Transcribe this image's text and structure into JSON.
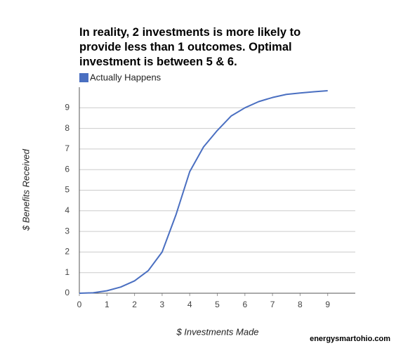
{
  "chart_data": {
    "type": "line",
    "title": "In reality, 2 investments is more likely to\nprovide less than 1 outcomes. Optimal\ninvestment is between 5 & 6.",
    "x_label": "$ Investments Made",
    "y_label": "$ Benefits Received",
    "watermark": "energysmartohio.com",
    "x": [
      0,
      0.5,
      1,
      1.5,
      2,
      2.5,
      3,
      3.5,
      4,
      4.5,
      5,
      5.5,
      6,
      6.5,
      7,
      7.5,
      8,
      8.5,
      9
    ],
    "series": [
      {
        "name": "Actually Happens",
        "color": "#4a6fc1",
        "values": [
          0,
          0.02,
          0.12,
          0.3,
          0.6,
          1.1,
          2.0,
          3.8,
          5.9,
          7.1,
          7.9,
          8.6,
          9.0,
          9.3,
          9.5,
          9.65,
          9.72,
          9.78,
          9.83
        ]
      }
    ],
    "xlim": [
      0,
      10
    ],
    "xticks": [
      0,
      1,
      2,
      3,
      4,
      5,
      6,
      7,
      8,
      9
    ],
    "ylim": [
      0,
      10
    ],
    "yticks": [
      0,
      1,
      2,
      3,
      4,
      5,
      6,
      7,
      8,
      9
    ],
    "grid": true
  }
}
